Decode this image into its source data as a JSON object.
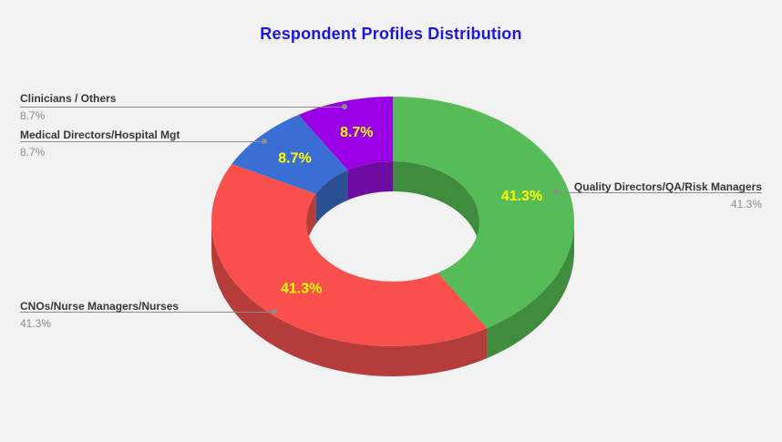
{
  "chart_data": {
    "type": "pie",
    "variant": "3d-donut",
    "title": "Respondent Profiles Distribution",
    "start_angle_deg": -90,
    "direction": "clockwise",
    "donut_hole_ratio": 0.48,
    "legend_position": "none",
    "labels": "outside callouts with name and percent, yellow percent inside slices",
    "slices": [
      {
        "label": "Quality Directors/QA/Risk Managers",
        "value": 41.3,
        "display": "41.3%",
        "color": "#57BC58",
        "side_color": "#3F8C3F",
        "callout_side": "right"
      },
      {
        "label": "CNOs/Nurse Managers/Nurses",
        "value": 41.3,
        "display": "41.3%",
        "color": "#F94F4D",
        "side_color": "#B43C3A",
        "callout_side": "left"
      },
      {
        "label": "Medical Directors/Hospital Mgt",
        "value": 8.7,
        "display": "8.7%",
        "color": "#3B6ED4",
        "side_color": "#2B4F93",
        "callout_side": "left"
      },
      {
        "label": "Clinicians / Others",
        "value": 8.7,
        "display": "8.7%",
        "color": "#9900E6",
        "side_color": "#6E0CA2",
        "callout_side": "left"
      }
    ]
  },
  "colors": {
    "background": "#F2F2F2",
    "title": "#1C16E4",
    "slice_label": "#FFFF00",
    "callout_name": "#383838",
    "callout_value": "#8C8C8C",
    "leader_line": "#8C8C8C"
  }
}
